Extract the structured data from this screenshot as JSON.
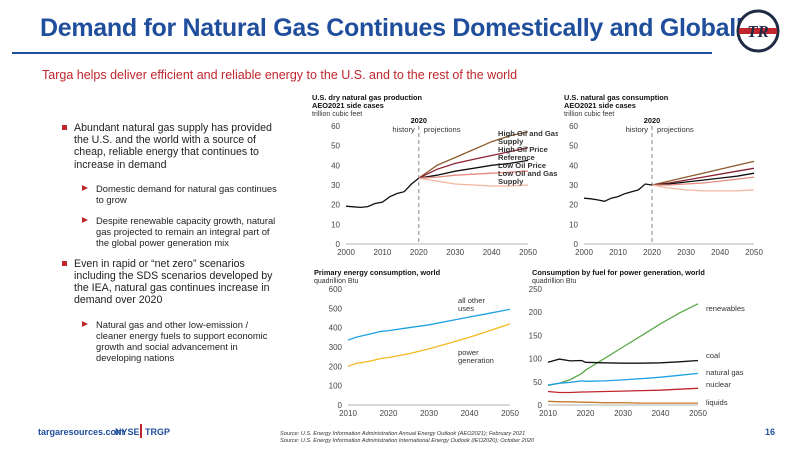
{
  "header": {
    "title": "Demand for Natural Gas Continues Domestically and Globally",
    "subtitle": "Targa helps deliver efficient and reliable energy to the U.S. and to the rest of the world",
    "logo_text": "TR"
  },
  "bullets": [
    {
      "text": "Abundant natural gas supply has provided the U.S. and the world with a source of cheap, reliable energy that continues to increase in demand",
      "sub": [
        "Domestic demand for natural gas continues to grow",
        "Despite renewable capacity growth, natural gas projected to remain an integral part of the global power generation mix"
      ]
    },
    {
      "text": "Even in rapid or “net zero” scenarios including the SDS scenarios developed by the IEA, natural gas continues increase in demand over 2020",
      "sub": [
        "Natural gas and other low-emission / cleaner energy fuels to support economic growth and social advancement in developing nations"
      ]
    }
  ],
  "footer": {
    "url": "targaresources.com",
    "ticker_a": "NYSE",
    "ticker_b": "TRGP",
    "page": "16",
    "source_1": "Source: U.S. Energy Information Administration Annual Energy Outlook (AEO2021); February 2021",
    "source_2": "Source: U.S. Energy Information Administration International Energy Outlook (IEO2020); October 2020"
  },
  "chart_data": [
    {
      "id": "production",
      "type": "line",
      "title_1": "U.S. dry natural gas production",
      "title_2": "AEO2021 side cases",
      "unit": "trillion cubic feet",
      "ylim": [
        0,
        60
      ],
      "yticks": [
        "0",
        "10",
        "20",
        "30",
        "40",
        "50",
        "60"
      ],
      "xlim": [
        2000,
        2050
      ],
      "xticks": [
        "2000",
        "2010",
        "2020",
        "2030",
        "2040",
        "2050"
      ],
      "divider_label": "2020",
      "history_label": "history",
      "projections_label": "projections",
      "history": {
        "x": [
          2000,
          2002,
          2004,
          2006,
          2008,
          2010,
          2012,
          2014,
          2016,
          2018,
          2020
        ],
        "y": [
          19.2,
          18.9,
          18.6,
          19.0,
          20.6,
          21.3,
          24.0,
          25.7,
          26.6,
          30.5,
          33.5
        ]
      },
      "series": [
        {
          "name": "High Oil and Gas Supply",
          "color": "#8a5a2b",
          "x": [
            2020,
            2025,
            2030,
            2035,
            2040,
            2045,
            2050
          ],
          "y": [
            33.5,
            40,
            44,
            48,
            52,
            55,
            57
          ]
        },
        {
          "name": "High Oil Price",
          "color": "#8b2232",
          "x": [
            2020,
            2025,
            2030,
            2035,
            2040,
            2045,
            2050
          ],
          "y": [
            33.5,
            38,
            41,
            43,
            45,
            47,
            49
          ]
        },
        {
          "name": "Reference",
          "color": "#111111",
          "x": [
            2020,
            2025,
            2030,
            2035,
            2040,
            2045,
            2050
          ],
          "y": [
            33.5,
            35,
            37,
            38.5,
            40,
            41,
            42.5
          ]
        },
        {
          "name": "Low Oil Price",
          "color": "#e58a80",
          "x": [
            2020,
            2025,
            2030,
            2035,
            2040,
            2045,
            2050
          ],
          "y": [
            33.5,
            34,
            35,
            35.5,
            36,
            36.5,
            37
          ]
        },
        {
          "name": "Low Oil and Gas Supply",
          "color": "#f2b59c",
          "x": [
            2020,
            2025,
            2030,
            2035,
            2040,
            2045,
            2050
          ],
          "y": [
            33.5,
            32,
            30.5,
            30,
            29.5,
            29.5,
            30
          ]
        }
      ]
    },
    {
      "id": "consumption",
      "type": "line",
      "title_1": "U.S. natural gas consumption",
      "title_2": "AEO2021 side cases",
      "unit": "trillion cubic feet",
      "ylim": [
        0,
        60
      ],
      "yticks": [
        "0",
        "10",
        "20",
        "30",
        "40",
        "50",
        "60"
      ],
      "xlim": [
        2000,
        2050
      ],
      "xticks": [
        "2000",
        "2010",
        "2020",
        "2030",
        "2040",
        "2050"
      ],
      "divider_label": "2020",
      "history_label": "history",
      "projections_label": "projections",
      "history": {
        "x": [
          2000,
          2002,
          2004,
          2006,
          2008,
          2010,
          2012,
          2014,
          2016,
          2018,
          2020
        ],
        "y": [
          23.3,
          23.0,
          22.4,
          21.7,
          23.3,
          24.1,
          25.6,
          26.6,
          27.5,
          30.5,
          30.0
        ]
      },
      "series": [
        {
          "name": "High Oil and Gas Supply",
          "color": "#8a5a2b",
          "x": [
            2020,
            2025,
            2030,
            2035,
            2040,
            2045,
            2050
          ],
          "y": [
            30,
            32,
            34,
            36,
            38,
            40,
            42
          ]
        },
        {
          "name": "High Oil Price",
          "color": "#8b2232",
          "x": [
            2020,
            2025,
            2030,
            2035,
            2040,
            2045,
            2050
          ],
          "y": [
            30,
            31,
            32.5,
            34,
            35.5,
            37,
            38.5
          ]
        },
        {
          "name": "Reference",
          "color": "#111111",
          "x": [
            2020,
            2025,
            2030,
            2035,
            2040,
            2045,
            2050
          ],
          "y": [
            30,
            30.5,
            31.5,
            32.5,
            33.5,
            34.5,
            36
          ]
        },
        {
          "name": "Low Oil Price",
          "color": "#e58a80",
          "x": [
            2020,
            2025,
            2030,
            2035,
            2040,
            2045,
            2050
          ],
          "y": [
            30,
            30,
            30.5,
            31,
            32,
            33,
            34
          ]
        },
        {
          "name": "Low Oil and Gas Supply",
          "color": "#f2b59c",
          "x": [
            2020,
            2025,
            2030,
            2035,
            2040,
            2045,
            2050
          ],
          "y": [
            30,
            28.5,
            27.5,
            27,
            27,
            27,
            27.5
          ]
        }
      ]
    },
    {
      "id": "primary",
      "type": "line",
      "title_1": "Primary energy consumption, world",
      "unit": "quadrillion Btu",
      "ylim": [
        0,
        600
      ],
      "yticks": [
        "0",
        "100",
        "200",
        "300",
        "400",
        "500",
        "600"
      ],
      "xlim": [
        2010,
        2050
      ],
      "xticks": [
        "2010",
        "2020",
        "2030",
        "2040",
        "2050"
      ],
      "series": [
        {
          "name": "all other uses",
          "label_lines": [
            "all other",
            "uses"
          ],
          "color": "#1ea0e3",
          "x": [
            2010,
            2012,
            2015,
            2018,
            2020,
            2025,
            2030,
            2035,
            2040,
            2045,
            2050
          ],
          "y": [
            335,
            350,
            365,
            380,
            385,
            400,
            415,
            435,
            455,
            475,
            495
          ]
        },
        {
          "name": "power generation",
          "label_lines": [
            "power",
            "generation"
          ],
          "color": "#f5b820",
          "x": [
            2010,
            2012,
            2015,
            2018,
            2020,
            2025,
            2030,
            2035,
            2040,
            2045,
            2050
          ],
          "y": [
            200,
            215,
            225,
            240,
            245,
            265,
            290,
            320,
            350,
            385,
            420
          ]
        }
      ]
    },
    {
      "id": "power",
      "type": "line",
      "title_1": "Consumption by fuel for power generation, world",
      "unit": "quadrillion Btu",
      "ylim": [
        0,
        250
      ],
      "yticks": [
        "0",
        "50",
        "100",
        "150",
        "200",
        "250"
      ],
      "xlim": [
        2010,
        2050
      ],
      "xticks": [
        "2010",
        "2020",
        "2030",
        "2040",
        "2050"
      ],
      "series": [
        {
          "name": "renewables",
          "color": "#5aa84a",
          "x": [
            2010,
            2013,
            2016,
            2019,
            2020,
            2025,
            2030,
            2035,
            2040,
            2045,
            2050
          ],
          "y": [
            42,
            47,
            55,
            68,
            75,
            100,
            125,
            150,
            175,
            198,
            218
          ]
        },
        {
          "name": "coal",
          "color": "#111111",
          "x": [
            2010,
            2013,
            2016,
            2019,
            2020,
            2025,
            2030,
            2035,
            2040,
            2045,
            2050
          ],
          "y": [
            92,
            99,
            95,
            96,
            92,
            91,
            90,
            90,
            91,
            93,
            96
          ]
        },
        {
          "name": "natural gas",
          "color": "#1ea0e3",
          "x": [
            2010,
            2013,
            2016,
            2019,
            2020,
            2025,
            2030,
            2035,
            2040,
            2045,
            2050
          ],
          "y": [
            43,
            47,
            49,
            52,
            51,
            52,
            54,
            57,
            60,
            64,
            68
          ]
        },
        {
          "name": "nuclear",
          "color": "#c0262c",
          "x": [
            2010,
            2013,
            2016,
            2019,
            2020,
            2025,
            2030,
            2035,
            2040,
            2045,
            2050
          ],
          "y": [
            29,
            27,
            27,
            28,
            28,
            29,
            30,
            31,
            32,
            34,
            36
          ]
        },
        {
          "name": "liquids",
          "color": "#c77a2a",
          "x": [
            2010,
            2013,
            2016,
            2019,
            2020,
            2025,
            2030,
            2035,
            2040,
            2045,
            2050
          ],
          "y": [
            8,
            7,
            7,
            6,
            6,
            5,
            5,
            4,
            4,
            4,
            4
          ]
        }
      ]
    }
  ]
}
